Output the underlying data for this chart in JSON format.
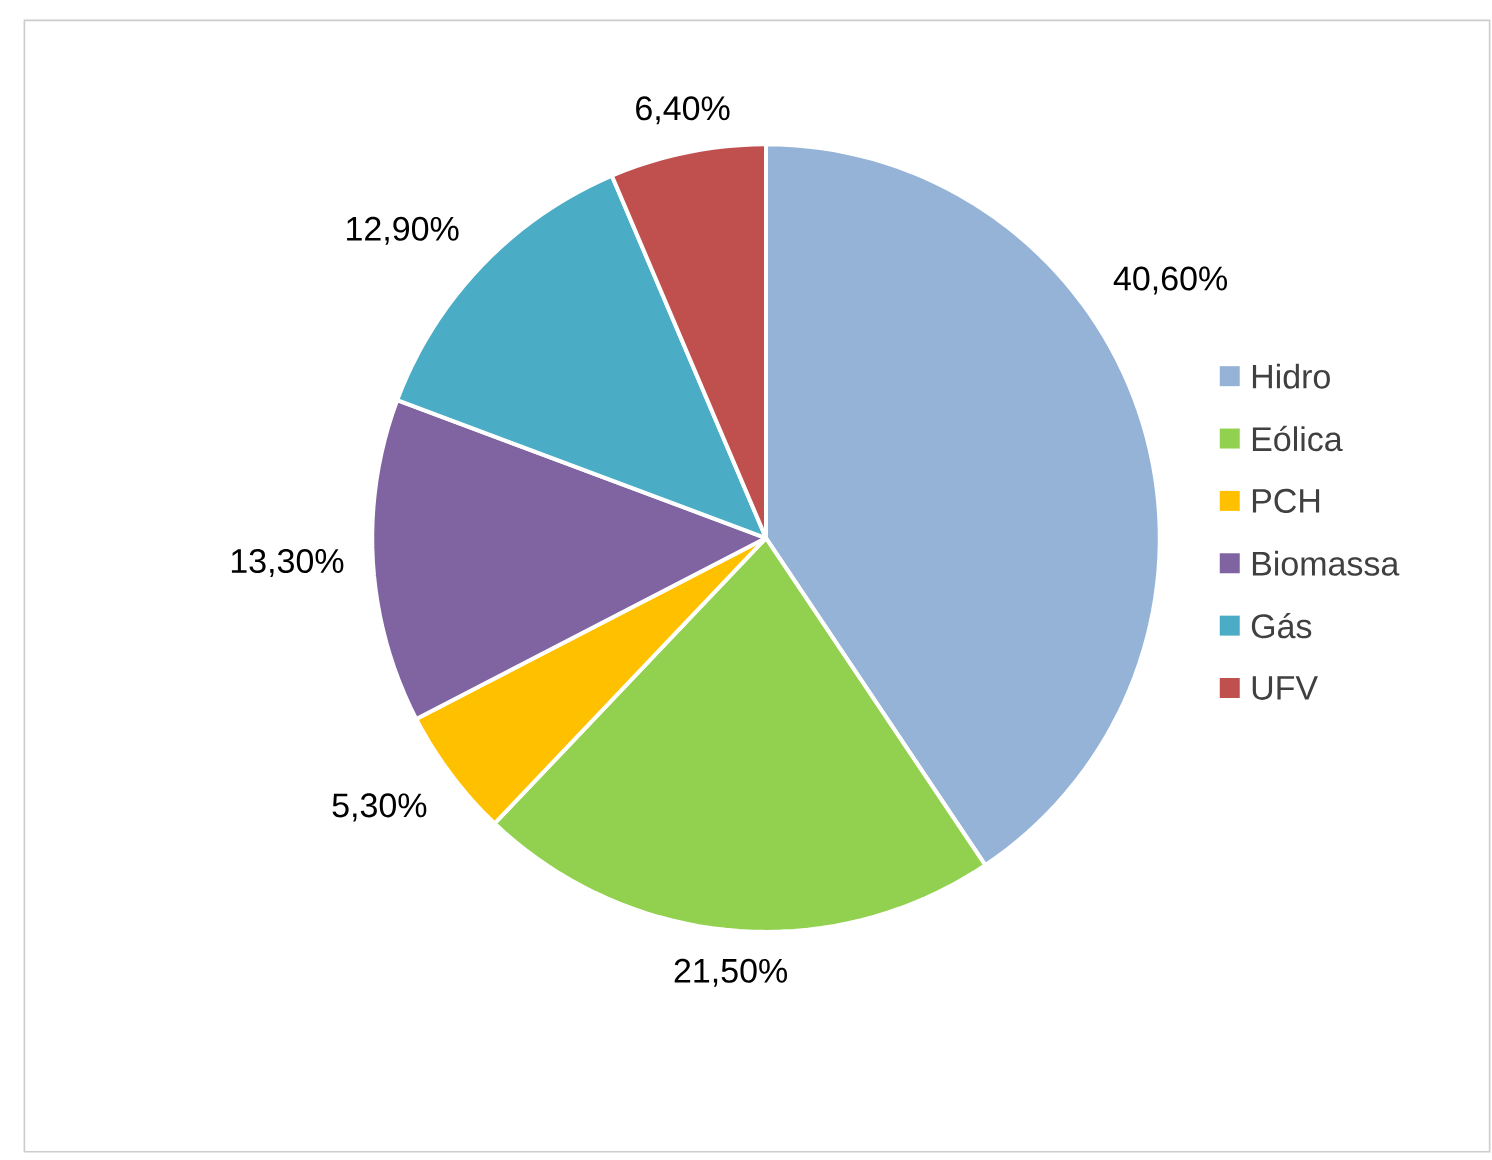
{
  "chart_data": {
    "type": "pie",
    "categories": [
      "Hidro",
      "Eólica",
      "PCH",
      "Biomassa",
      "Gás",
      "UFV"
    ],
    "values": [
      40.6,
      21.5,
      5.3,
      13.3,
      12.9,
      6.4
    ],
    "value_labels": [
      "40,60%",
      "21,50%",
      "5,30%",
      "13,30%",
      "12,90%",
      "6,40%"
    ],
    "colors": [
      "#95b3d7",
      "#92d050",
      "#ffc000",
      "#8064a2",
      "#4bacc6",
      "#c0504d"
    ],
    "legend": "right"
  }
}
